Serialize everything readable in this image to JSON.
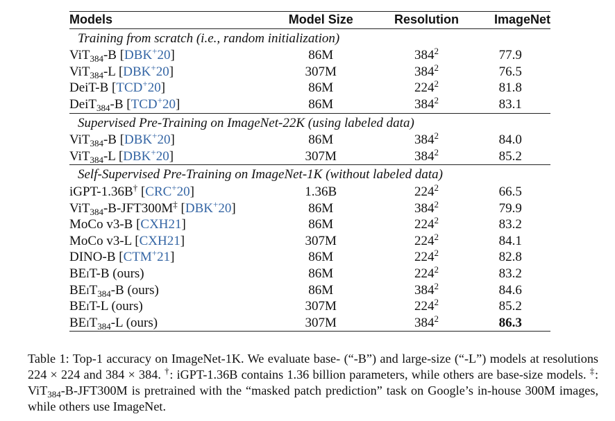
{
  "table": {
    "headers": {
      "model": "Models",
      "size": "Model Size",
      "resolution": "Resolution",
      "imagenet": "ImageNet"
    },
    "sections": [
      {
        "title": "Training from scratch (i.e., random initialization)",
        "rows": [
          {
            "model": "ViT",
            "sub": "384",
            "suffix": "-B ",
            "cite": "DBK",
            "cite_sup": "+",
            "cite_year": "20",
            "size": "86M",
            "res_base": "384",
            "res_exp": "2",
            "acc": "77.9"
          },
          {
            "model": "ViT",
            "sub": "384",
            "suffix": "-L ",
            "cite": "DBK",
            "cite_sup": "+",
            "cite_year": "20",
            "size": "307M",
            "res_base": "384",
            "res_exp": "2",
            "acc": "76.5"
          },
          {
            "model": "DeiT-B ",
            "sub": "",
            "suffix": "",
            "cite": "TCD",
            "cite_sup": "+",
            "cite_year": "20",
            "size": "86M",
            "res_base": "224",
            "res_exp": "2",
            "acc": "81.8"
          },
          {
            "model": "DeiT",
            "sub": "384",
            "suffix": "-B ",
            "cite": "TCD",
            "cite_sup": "+",
            "cite_year": "20",
            "size": "86M",
            "res_base": "384",
            "res_exp": "2",
            "acc": "83.1"
          }
        ]
      },
      {
        "title": "Supervised Pre-Training on ImageNet-22K (using labeled data)",
        "rows": [
          {
            "model": "ViT",
            "sub": "384",
            "suffix": "-B ",
            "cite": "DBK",
            "cite_sup": "+",
            "cite_year": "20",
            "size": "86M",
            "res_base": "384",
            "res_exp": "2",
            "acc": "84.0"
          },
          {
            "model": "ViT",
            "sub": "384",
            "suffix": "-L ",
            "cite": "DBK",
            "cite_sup": "+",
            "cite_year": "20",
            "size": "307M",
            "res_base": "384",
            "res_exp": "2",
            "acc": "85.2"
          }
        ]
      },
      {
        "title": "Self-Supervised Pre-Training on ImageNet-1K (without labeled data)",
        "rows": [
          {
            "model": "iGPT-1.36B",
            "mark": "†",
            "sub": "",
            "suffix": " ",
            "cite": "CRC",
            "cite_sup": "+",
            "cite_year": "20",
            "size": "1.36B",
            "res_base": "224",
            "res_exp": "2",
            "acc": "66.5"
          },
          {
            "model": "ViT",
            "sub": "384",
            "suffix": "-B-JFT300M",
            "mark2": "‡",
            "suffix2": " ",
            "cite": "DBK",
            "cite_sup": "+",
            "cite_year": "20",
            "size": "86M",
            "res_base": "384",
            "res_exp": "2",
            "acc": "79.9"
          },
          {
            "model": "MoCo v3-B ",
            "sub": "",
            "suffix": "",
            "cite": "CXH21",
            "cite_sup": "",
            "cite_year": "",
            "size": "86M",
            "res_base": "224",
            "res_exp": "2",
            "acc": "83.2"
          },
          {
            "model": "MoCo v3-L ",
            "sub": "",
            "suffix": "",
            "cite": "CXH21",
            "cite_sup": "",
            "cite_year": "",
            "size": "307M",
            "res_base": "224",
            "res_exp": "2",
            "acc": "84.1"
          },
          {
            "model": "DINO-B ",
            "sub": "",
            "suffix": "",
            "cite": "CTM",
            "cite_sup": "+",
            "cite_year": "21",
            "size": "86M",
            "res_base": "224",
            "res_exp": "2",
            "acc": "82.8"
          },
          {
            "model": "BE",
            "sc": "i",
            "model_tail": "T-B (ours)",
            "sub": "",
            "suffix": "",
            "size": "86M",
            "res_base": "224",
            "res_exp": "2",
            "acc": "83.2"
          },
          {
            "model": "BE",
            "sc": "i",
            "model_tail": "T",
            "sub": "384",
            "suffix": "-B (ours)",
            "size": "86M",
            "res_base": "384",
            "res_exp": "2",
            "acc": "84.6"
          },
          {
            "model": "BE",
            "sc": "i",
            "model_tail": "T-L (ours)",
            "sub": "",
            "suffix": "",
            "size": "307M",
            "res_base": "224",
            "res_exp": "2",
            "acc": "85.2"
          },
          {
            "model": "BE",
            "sc": "i",
            "model_tail": "T",
            "sub": "384",
            "suffix": "-L (ours)",
            "size": "307M",
            "res_base": "384",
            "res_exp": "2",
            "acc": "86.3",
            "bold": true
          }
        ]
      }
    ]
  },
  "caption": {
    "p1": "Table 1: Top-1 accuracy on ImageNet-1K. We evaluate base- (“-B”) and large-size (“-L”) models at resolutions 224 × 224 and 384 × 384. ",
    "dagger": "†",
    "p2": ": iGPT-1.36B contains 1.36 billion parameters, while others are base-size models. ",
    "ddagger": "‡",
    "p3a": ": ViT",
    "p3sub": "384",
    "p3b": "-B-JFT300M is pretrained with the “masked patch prediction” task on Google’s in-house 300M images, while others use ImageNet."
  }
}
